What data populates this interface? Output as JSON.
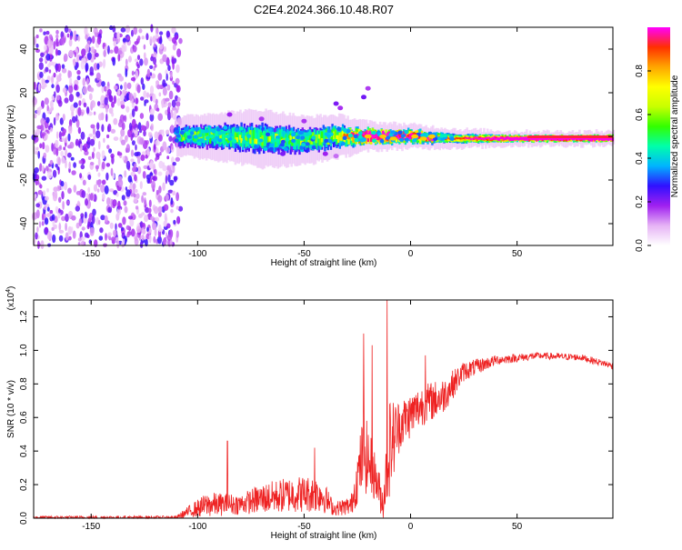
{
  "title": "C2E4.2024.366.10.48.R07",
  "chart_data": [
    {
      "type": "heatmap",
      "name": "spectrogram",
      "title": "C2E4.2024.366.10.48.R07",
      "xlabel": "Height of straight line (km)",
      "ylabel": "Frequency (Hz)",
      "xlim": [
        -177,
        95
      ],
      "ylim": [
        -50,
        50
      ],
      "xticks": [
        -150,
        -100,
        -50,
        0,
        50
      ],
      "yticks": [
        -40,
        -20,
        0,
        20,
        40
      ],
      "colorbar": {
        "label": "Normalized spectral amplitude",
        "range": [
          0,
          1
        ],
        "ticks": [
          0.0,
          0.2,
          0.4,
          0.6,
          0.8
        ],
        "colors": [
          "#ffffff",
          "#e6b3f5",
          "#a020f0",
          "#3010ff",
          "#00b4ff",
          "#00ffaa",
          "#32ff00",
          "#c8ff00",
          "#ffff00",
          "#ffa500",
          "#ff3000",
          "#ff00ff"
        ]
      },
      "noise_region_x": [
        -177,
        -108
      ],
      "signal_band": [
        {
          "x": -110,
          "center": 0,
          "width": 8,
          "amp": 0.35
        },
        {
          "x": -90,
          "center": 0,
          "width": 10,
          "amp": 0.4
        },
        {
          "x": -70,
          "center": -1,
          "width": 12,
          "amp": 0.4
        },
        {
          "x": -50,
          "center": -2,
          "width": 10,
          "amp": 0.4
        },
        {
          "x": -35,
          "center": 0,
          "width": 9,
          "amp": 0.45
        },
        {
          "x": -20,
          "center": 0,
          "width": 6,
          "amp": 0.75
        },
        {
          "x": 0,
          "center": 0,
          "width": 5,
          "amp": 0.7
        },
        {
          "x": 20,
          "center": -1,
          "width": 4,
          "amp": 0.55
        },
        {
          "x": 50,
          "center": -1,
          "width": 3,
          "amp": 0.8
        },
        {
          "x": 95,
          "center": -1,
          "width": 3,
          "amp": 0.95
        }
      ]
    },
    {
      "type": "line",
      "name": "snr",
      "xlabel": "Height of straight line (km)",
      "ylabel": "SNR (10 * v/v)",
      "y_multiplier": "(x10^4)",
      "y_multiplier_base": "(x10",
      "y_multiplier_exp": "4",
      "y_multiplier_end": ")",
      "xlim": [
        -177,
        95
      ],
      "ylim": [
        0,
        1.3
      ],
      "xticks": [
        -150,
        -100,
        -50,
        0,
        50
      ],
      "yticks": [
        0.0,
        0.2,
        0.4,
        0.6,
        0.8,
        1.0,
        1.2
      ],
      "color": "#ee2222",
      "envelope": [
        {
          "x": -177,
          "base": 0.0,
          "amp": 0.02
        },
        {
          "x": -110,
          "base": 0.0,
          "amp": 0.02
        },
        {
          "x": -103,
          "base": 0.03,
          "amp": 0.08
        },
        {
          "x": -95,
          "base": 0.05,
          "amp": 0.15
        },
        {
          "x": -80,
          "base": 0.06,
          "amp": 0.12
        },
        {
          "x": -70,
          "base": 0.08,
          "amp": 0.18
        },
        {
          "x": -55,
          "base": 0.1,
          "amp": 0.22
        },
        {
          "x": -42,
          "base": 0.1,
          "amp": 0.22
        },
        {
          "x": -36,
          "base": 0.04,
          "amp": 0.08
        },
        {
          "x": -28,
          "base": 0.05,
          "amp": 0.12
        },
        {
          "x": -22,
          "base": 0.3,
          "amp": 0.5
        },
        {
          "x": -17,
          "base": 0.2,
          "amp": 0.3
        },
        {
          "x": -13,
          "base": 0.05,
          "amp": 0.2
        },
        {
          "x": -10,
          "base": 0.3,
          "amp": 0.6
        },
        {
          "x": -5,
          "base": 0.5,
          "amp": 0.3
        },
        {
          "x": 5,
          "base": 0.62,
          "amp": 0.25
        },
        {
          "x": 15,
          "base": 0.68,
          "amp": 0.22
        },
        {
          "x": 25,
          "base": 0.85,
          "amp": 0.12
        },
        {
          "x": 40,
          "base": 0.93,
          "amp": 0.06
        },
        {
          "x": 60,
          "base": 0.96,
          "amp": 0.04
        },
        {
          "x": 80,
          "base": 0.95,
          "amp": 0.04
        },
        {
          "x": 95,
          "base": 0.9,
          "amp": 0.04
        }
      ],
      "spikes": [
        {
          "x": -86,
          "y": 0.46
        },
        {
          "x": -22,
          "y": 1.1
        },
        {
          "x": -18,
          "y": 1.03
        },
        {
          "x": -11,
          "y": 1.3
        },
        {
          "x": 7,
          "y": 0.97
        },
        {
          "x": -45,
          "y": 0.42
        }
      ]
    }
  ]
}
